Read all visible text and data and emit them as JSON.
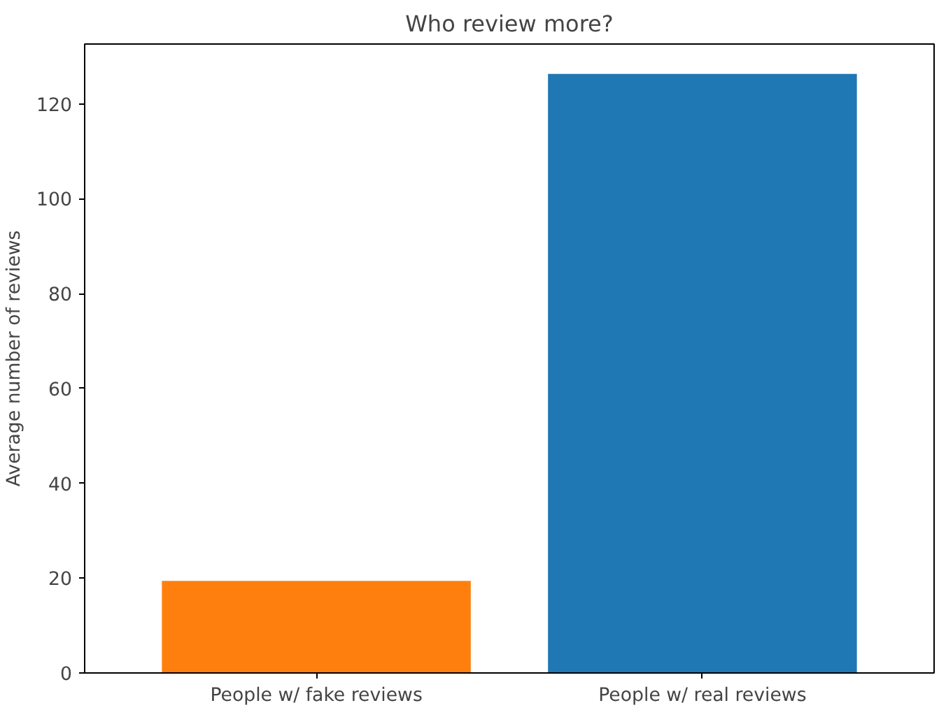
{
  "chart_data": {
    "type": "bar",
    "title": "Who review more?",
    "ylabel": "Average number of reviews",
    "categories": [
      "People w/ fake reviews",
      "People w/ real reviews"
    ],
    "values": [
      19.4,
      126.3
    ],
    "colors": [
      "#ff7f0e",
      "#1f77b4"
    ],
    "ylim": [
      0,
      132.6
    ],
    "yticks": [
      0,
      20,
      40,
      60,
      80,
      100,
      120
    ],
    "grid": false
  }
}
